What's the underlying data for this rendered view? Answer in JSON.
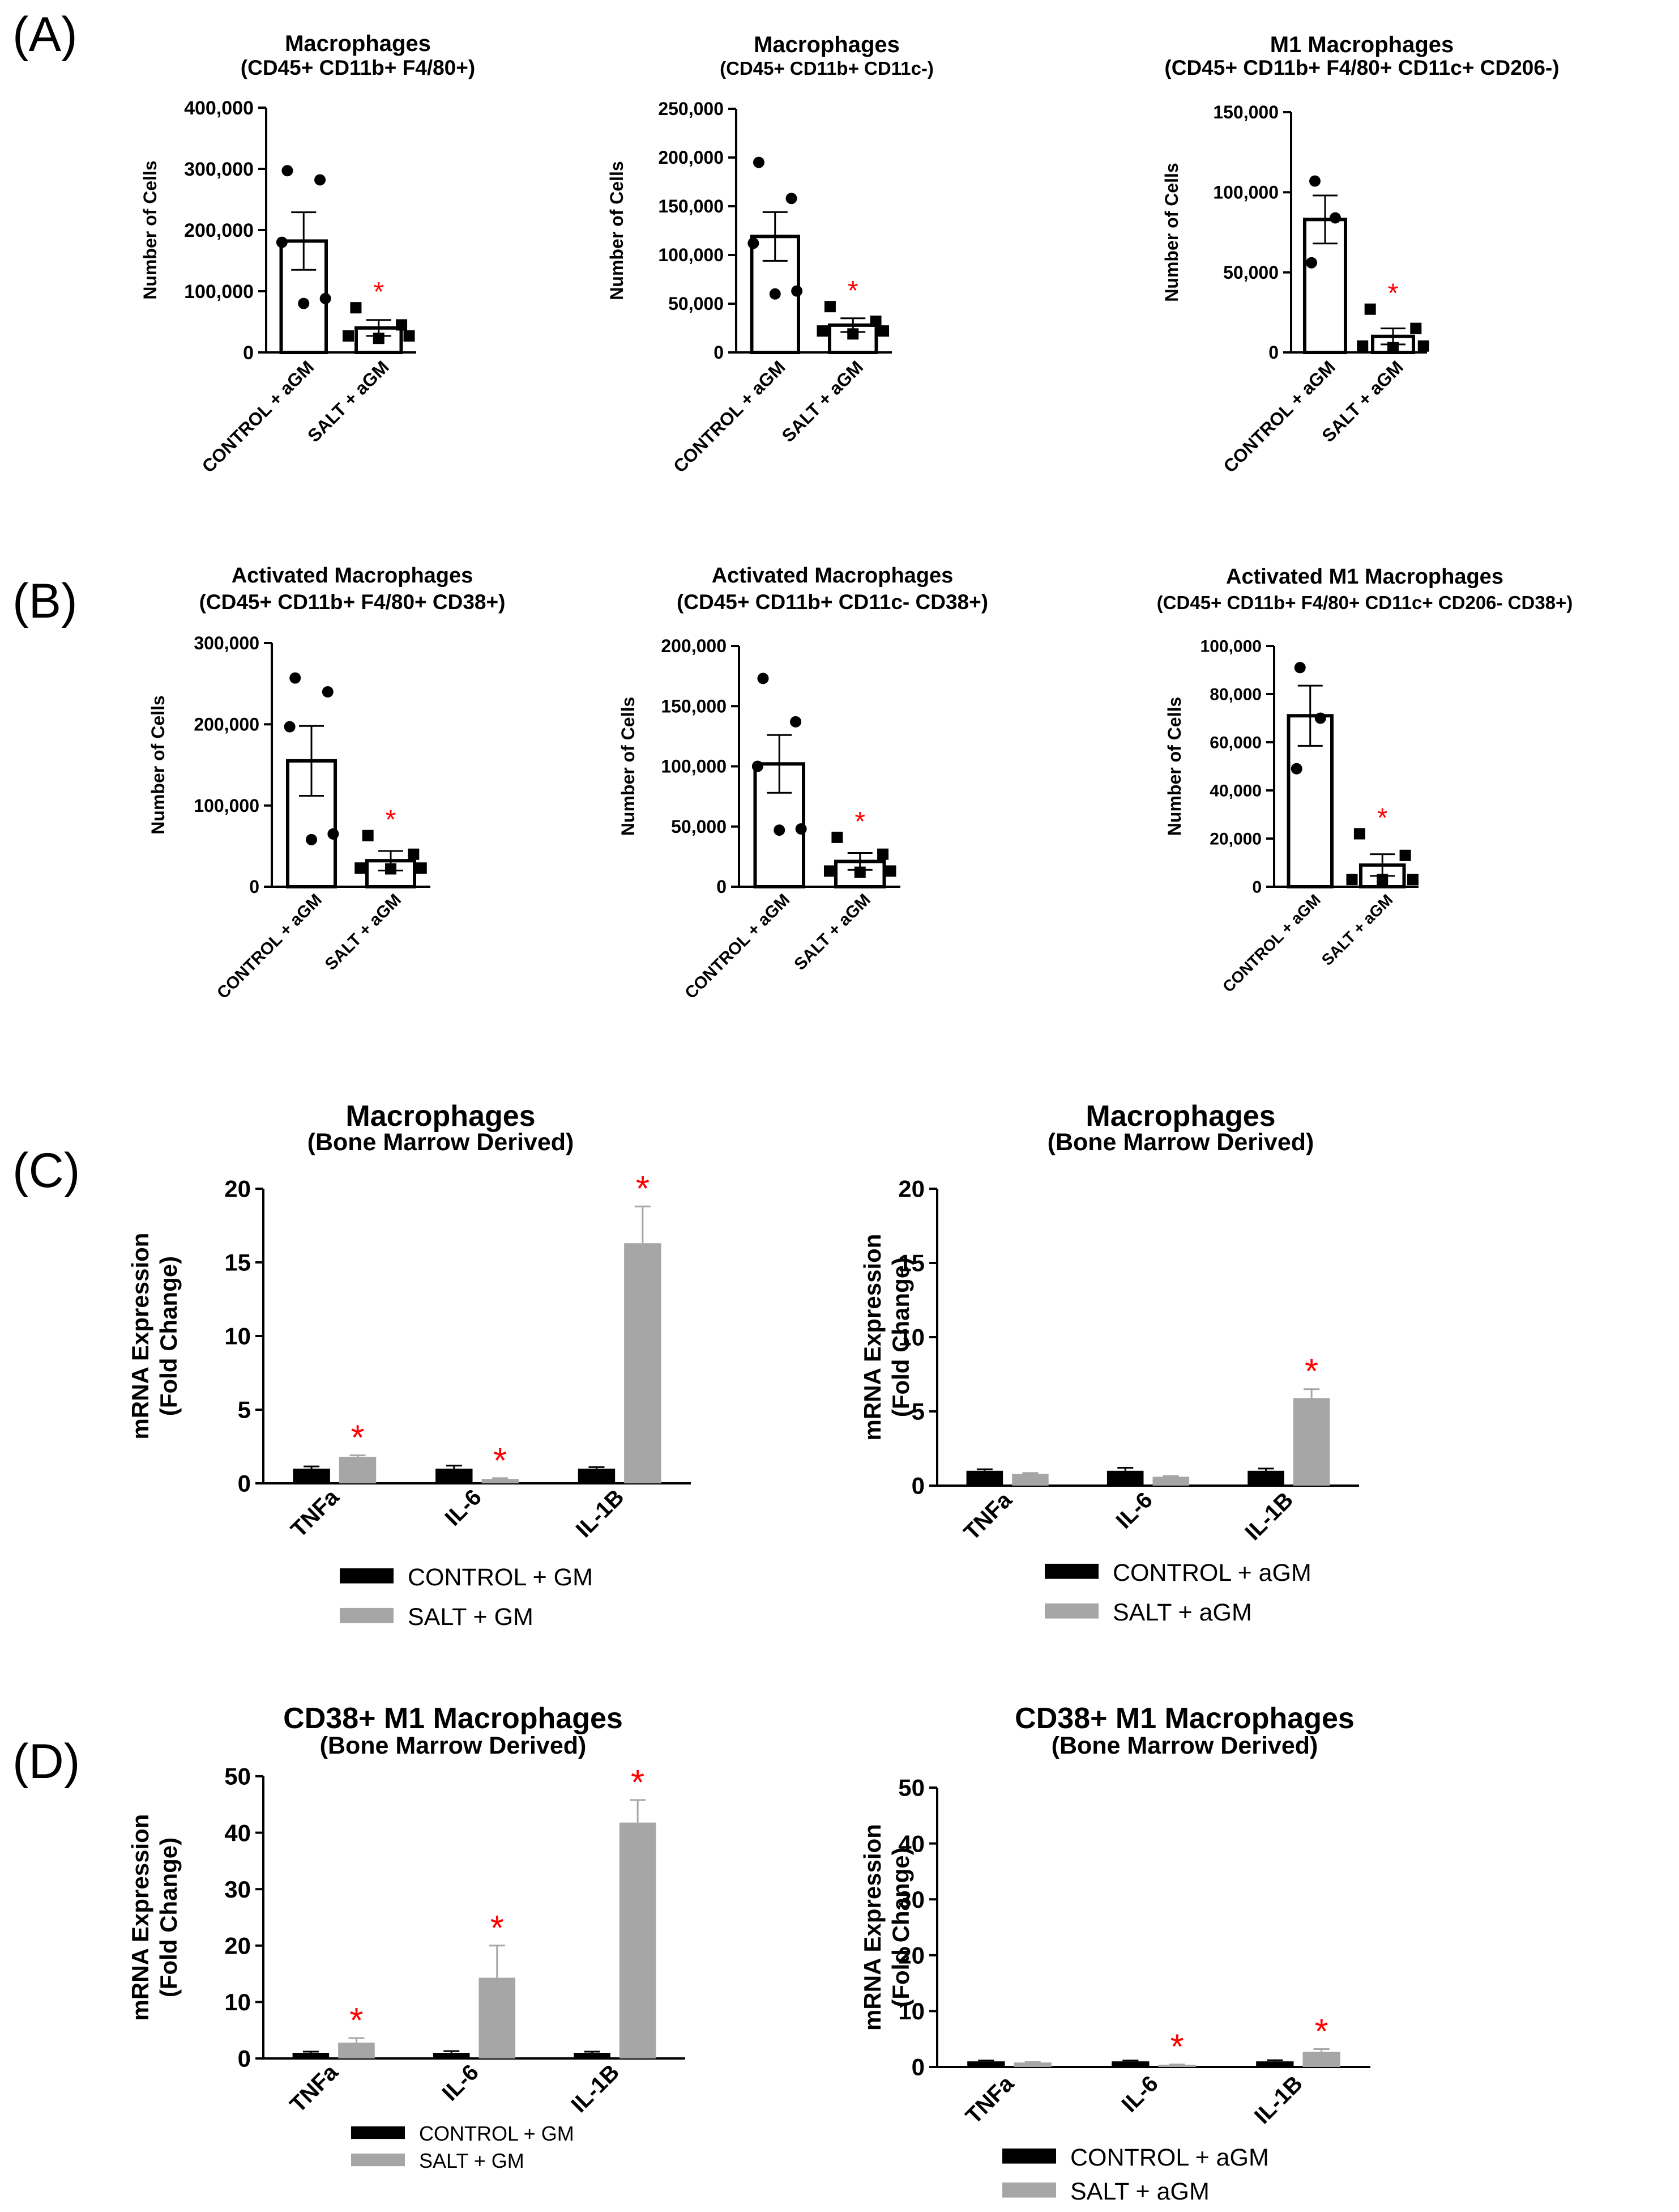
{
  "panel_labels": [
    "(A)",
    "(B)",
    "(C)",
    "(D)"
  ],
  "colors": {
    "control_bar": "#000000",
    "salt_bar": "#a6a6a6",
    "star": "#ff0000",
    "axis": "#000000"
  },
  "chart_data": [
    {
      "type": "bar",
      "panel": "A",
      "title": "Macrophages",
      "subtitle": "(CD45+ CD11b+ F4/80+)",
      "ylabel": "Number of Cells",
      "ylim": [
        0,
        400000
      ],
      "yticks": [
        "0",
        "100,000",
        "200,000",
        "300,000",
        "400,000"
      ],
      "ytick_values": [
        0,
        100000,
        200000,
        300000,
        400000
      ],
      "categories": [
        "CONTROL + aGM",
        "SALT + aGM"
      ],
      "values": [
        182000,
        40000
      ],
      "errors": [
        47000,
        13000
      ],
      "points": [
        [
          297000,
          282000,
          180000,
          88000,
          80000
        ],
        [
          73000,
          45000,
          27000,
          27000,
          23000
        ]
      ],
      "point_markers": [
        "circle",
        "square"
      ],
      "significant": [
        false,
        true
      ],
      "star": "*"
    },
    {
      "type": "bar",
      "panel": "A",
      "title": "Macrophages",
      "subtitle": "(CD45+ CD11b+ CD11c-)",
      "ylabel": "Number of Cells",
      "ylim": [
        0,
        250000
      ],
      "yticks": [
        "0",
        "50,000",
        "100,000",
        "150,000",
        "200,000",
        "250,000"
      ],
      "ytick_values": [
        0,
        50000,
        100000,
        150000,
        200000,
        250000
      ],
      "categories": [
        "CONTROL + aGM",
        "SALT + aGM"
      ],
      "values": [
        119000,
        28000
      ],
      "errors": [
        25000,
        7000
      ],
      "points": [
        [
          195000,
          158000,
          112000,
          63000,
          60000
        ],
        [
          47000,
          32000,
          22000,
          22000,
          19000
        ]
      ],
      "point_markers": [
        "circle",
        "square"
      ],
      "significant": [
        false,
        true
      ],
      "star": "*"
    },
    {
      "type": "bar",
      "panel": "A",
      "title": "M1 Macrophages",
      "subtitle": "(CD45+ CD11b+ F4/80+ CD11c+ CD206-)",
      "ylabel": "Number of Cells",
      "ylim": [
        0,
        150000
      ],
      "yticks": [
        "0",
        "50,000",
        "100,000",
        "150,000"
      ],
      "ytick_values": [
        0,
        50000,
        100000,
        150000
      ],
      "categories": [
        "CONTROL + aGM",
        "SALT + aGM"
      ],
      "values": [
        83000,
        10000
      ],
      "errors": [
        15000,
        5000
      ],
      "points": [
        [
          107000,
          84000,
          56000
        ],
        [
          27000,
          15000,
          4000,
          4000,
          3000
        ]
      ],
      "point_markers": [
        "circle",
        "square"
      ],
      "significant": [
        false,
        true
      ],
      "star": "*"
    },
    {
      "type": "bar",
      "panel": "B",
      "title": "Activated Macrophages",
      "subtitle": "(CD45+ CD11b+ F4/80+ CD38+)",
      "ylabel": "Number of Cells",
      "ylim": [
        0,
        300000
      ],
      "yticks": [
        "0",
        "100,000",
        "200,000",
        "300,000"
      ],
      "ytick_values": [
        0,
        100000,
        200000,
        300000
      ],
      "categories": [
        "CONTROL + aGM",
        "SALT + aGM"
      ],
      "values": [
        155000,
        32000
      ],
      "errors": [
        43000,
        12000
      ],
      "points": [
        [
          257000,
          240000,
          197000,
          65000,
          58000
        ],
        [
          63000,
          40000,
          23000,
          23000,
          22000
        ]
      ],
      "point_markers": [
        "circle",
        "square"
      ],
      "significant": [
        false,
        true
      ],
      "star": "*"
    },
    {
      "type": "bar",
      "panel": "B",
      "title": "Activated Macrophages",
      "subtitle": "(CD45+ CD11b+ CD11c- CD38+)",
      "ylabel": "Number of Cells",
      "ylim": [
        0,
        200000
      ],
      "yticks": [
        "0",
        "50,000",
        "100,000",
        "150,000",
        "200,000"
      ],
      "ytick_values": [
        0,
        50000,
        100000,
        150000,
        200000
      ],
      "categories": [
        "CONTROL + aGM",
        "SALT + aGM"
      ],
      "values": [
        102000,
        21000
      ],
      "errors": [
        24000,
        7000
      ],
      "points": [
        [
          173000,
          137000,
          100000,
          48000,
          47000
        ],
        [
          41000,
          27000,
          13000,
          13000,
          12000
        ]
      ],
      "point_markers": [
        "circle",
        "square"
      ],
      "significant": [
        false,
        true
      ],
      "star": "*"
    },
    {
      "type": "bar",
      "panel": "B",
      "title": "Activated M1 Macrophages",
      "subtitle": "(CD45+ CD11b+ F4/80+ CD11c+ CD206- CD38+)",
      "ylabel": "Number of Cells",
      "ylim": [
        0,
        100000
      ],
      "yticks": [
        "0",
        "20,000",
        "40,000",
        "60,000",
        "80,000",
        "100,000"
      ],
      "ytick_values": [
        0,
        20000,
        40000,
        60000,
        80000,
        100000
      ],
      "categories": [
        "CONTROL + aGM",
        "SALT + aGM"
      ],
      "values": [
        71000,
        9000
      ],
      "errors": [
        12500,
        4500
      ],
      "points": [
        [
          91000,
          70000,
          49000
        ],
        [
          22000,
          13000,
          3000,
          3000,
          3000
        ]
      ],
      "point_markers": [
        "circle",
        "square"
      ],
      "significant": [
        false,
        true
      ],
      "star": "*"
    },
    {
      "type": "bar",
      "panel": "C",
      "title": "Macrophages",
      "subtitle": "(Bone Marrow Derived)",
      "ylabel": "mRNA Expression",
      "ylabel2": "(Fold Change)",
      "ylim": [
        0,
        20
      ],
      "yticks": [
        "0",
        "5",
        "10",
        "15",
        "20"
      ],
      "ytick_values": [
        0,
        5,
        10,
        15,
        20
      ],
      "categories": [
        "TNFa",
        "IL-6",
        "IL-1B"
      ],
      "series": [
        {
          "name": "CONTROL + GM",
          "values": [
            1.0,
            1.0,
            1.0
          ],
          "errors": [
            0.15,
            0.2,
            0.1
          ]
        },
        {
          "name": "SALT + GM",
          "values": [
            1.8,
            0.3,
            16.3
          ],
          "errors": [
            0.1,
            0.05,
            2.5
          ]
        }
      ],
      "significant": [
        true,
        true,
        true
      ],
      "star": "*"
    },
    {
      "type": "bar",
      "panel": "C",
      "title": "Macrophages",
      "subtitle": "(Bone Marrow Derived)",
      "ylabel": "mRNA Expression",
      "ylabel2": "(Fold Change)",
      "ylim": [
        0,
        20
      ],
      "yticks": [
        "0",
        "5",
        "10",
        "15",
        "20"
      ],
      "ytick_values": [
        0,
        5,
        10,
        15,
        20
      ],
      "categories": [
        "TNFa",
        "IL-6",
        "IL-1B"
      ],
      "series": [
        {
          "name": "CONTROL + aGM",
          "values": [
            1.0,
            1.0,
            1.0
          ],
          "errors": [
            0.1,
            0.2,
            0.15
          ]
        },
        {
          "name": "SALT + aGM",
          "values": [
            0.8,
            0.6,
            5.9
          ],
          "errors": [
            0.05,
            0.05,
            0.6
          ]
        }
      ],
      "significant": [
        false,
        false,
        true
      ],
      "star": "*"
    },
    {
      "type": "bar",
      "panel": "D",
      "title": "CD38+ M1 Macrophages",
      "subtitle": "(Bone Marrow Derived)",
      "ylabel": "mRNA Expression",
      "ylabel2": "(Fold Change)",
      "ylim": [
        0,
        50
      ],
      "yticks": [
        "0",
        "10",
        "20",
        "30",
        "40",
        "50"
      ],
      "ytick_values": [
        0,
        10,
        20,
        30,
        40,
        50
      ],
      "categories": [
        "TNFa",
        "IL-6",
        "IL-1B"
      ],
      "series": [
        {
          "name": "CONTROL + GM",
          "values": [
            1.0,
            1.0,
            1.0
          ],
          "errors": [
            0.2,
            0.3,
            0.2
          ]
        },
        {
          "name": "SALT + GM",
          "values": [
            2.8,
            14.3,
            41.8
          ],
          "errors": [
            0.8,
            5.7,
            4.0
          ]
        }
      ],
      "significant": [
        true,
        true,
        true
      ],
      "star": "*"
    },
    {
      "type": "bar",
      "panel": "D",
      "title": "CD38+ M1 Macrophages",
      "subtitle": "(Bone Marrow Derived)",
      "ylabel": "mRNA Expression",
      "ylabel2": "(Fold Change)",
      "ylim": [
        0,
        50
      ],
      "yticks": [
        "0",
        "10",
        "20",
        "30",
        "40",
        "50"
      ],
      "ytick_values": [
        0,
        10,
        20,
        30,
        40,
        50
      ],
      "categories": [
        "TNFa",
        "IL-6",
        "IL-1B"
      ],
      "series": [
        {
          "name": "CONTROL + aGM",
          "values": [
            1.0,
            1.0,
            1.0
          ],
          "errors": [
            0.15,
            0.15,
            0.2
          ]
        },
        {
          "name": "SALT + aGM",
          "values": [
            0.8,
            0.4,
            2.7
          ],
          "errors": [
            0.1,
            0.05,
            0.5
          ]
        }
      ],
      "significant": [
        false,
        true,
        true
      ],
      "star": "*"
    }
  ]
}
